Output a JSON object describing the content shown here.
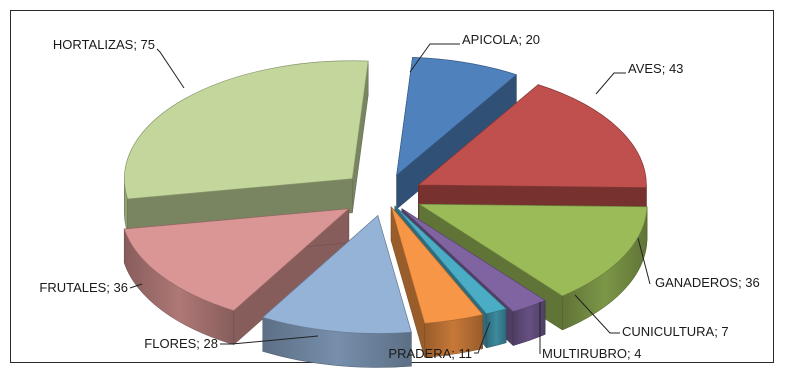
{
  "chart_data": {
    "type": "pie",
    "style": "3d-exploded",
    "title": "",
    "legend": "none",
    "label_format": "name; value",
    "slices": [
      {
        "name": "APICOLA",
        "value": 20,
        "color": "#4f81bd"
      },
      {
        "name": "AVES",
        "value": 43,
        "color": "#c0504d"
      },
      {
        "name": "GANADEROS",
        "value": 36,
        "color": "#9bbb59"
      },
      {
        "name": "CUNICULTURA",
        "value": 7,
        "color": "#8064a2"
      },
      {
        "name": "MULTIRUBRO",
        "value": 4,
        "color": "#4bacc6"
      },
      {
        "name": "PRADERA",
        "value": 11,
        "color": "#f79646"
      },
      {
        "name": "FLORES",
        "value": 28,
        "color": "#95b3d7"
      },
      {
        "name": "FRUTALES",
        "value": 36,
        "color": "#d99694"
      },
      {
        "name": "HORTALIZAS",
        "value": 75,
        "color": "#c3d69b"
      }
    ]
  }
}
